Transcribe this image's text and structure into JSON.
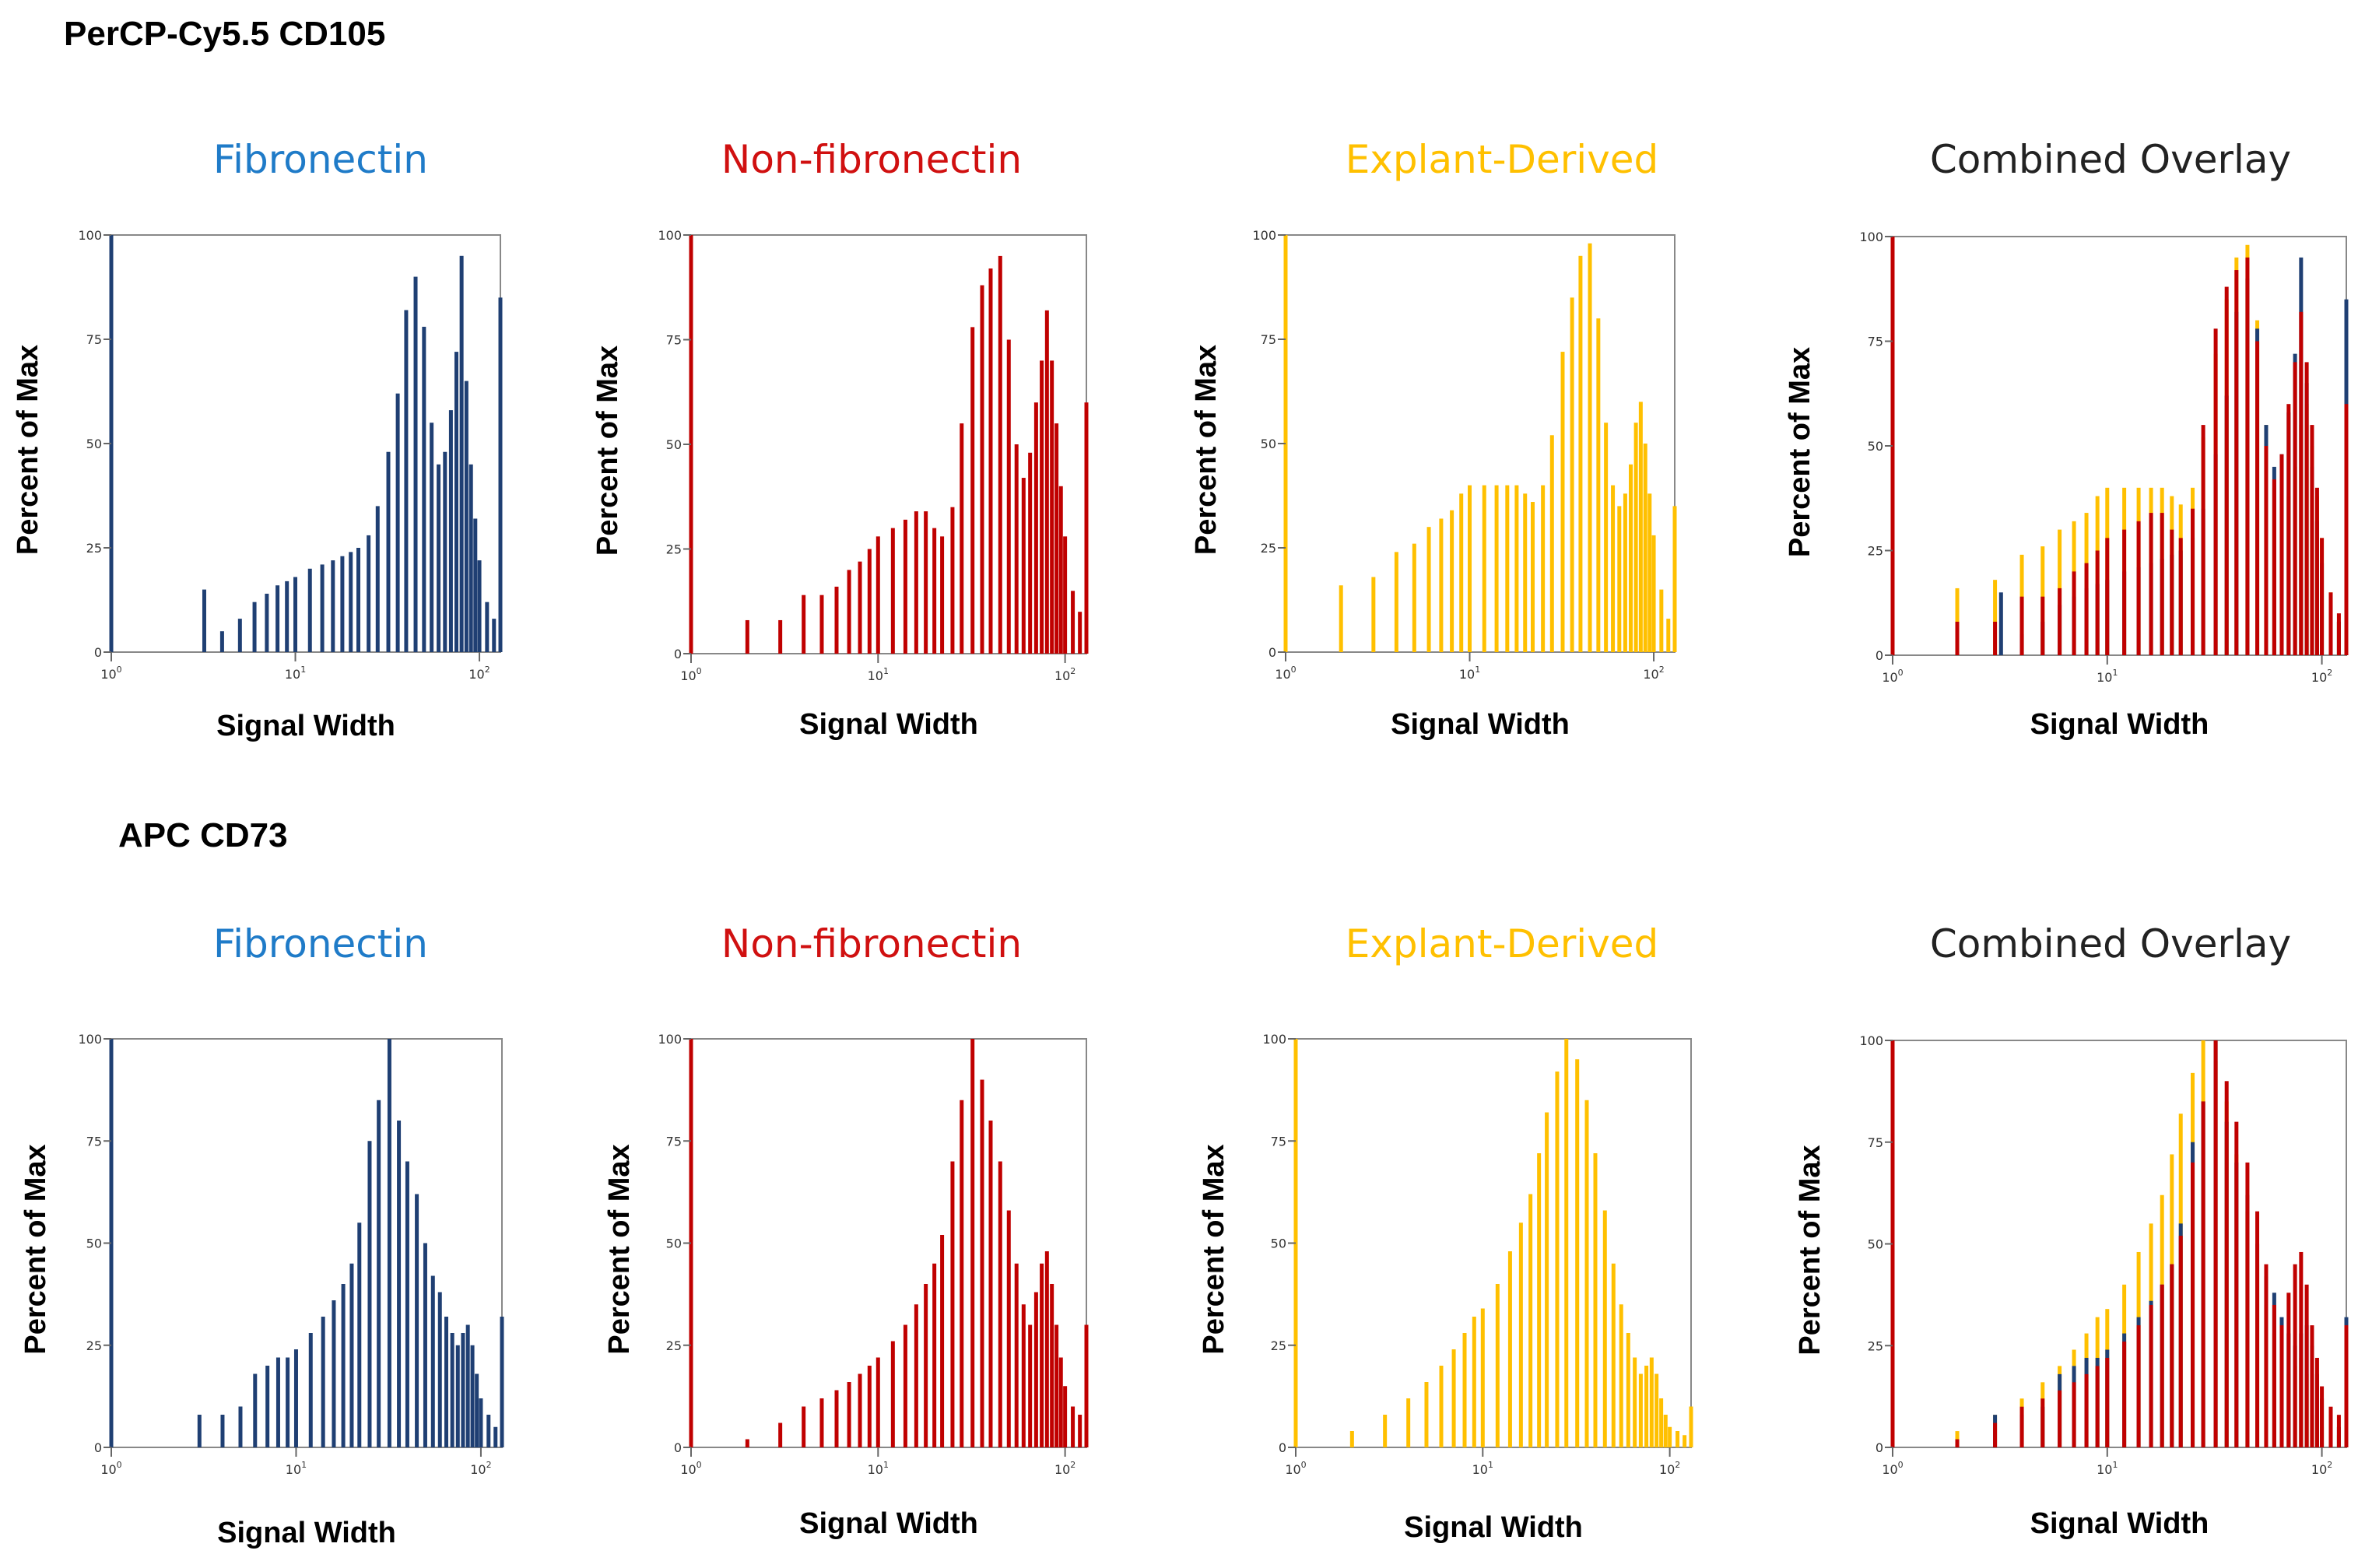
{
  "figure": {
    "sections": [
      {
        "title": "PerCP-Cy5.5 CD105"
      },
      {
        "title": "APC CD73"
      }
    ],
    "colors": {
      "fibronectin": "#1f3f73",
      "non_fibronectin": "#c00000",
      "explant": "#ffc000",
      "fibronectin_title": "#1f7bc8",
      "non_fibronectin_title": "#d01010",
      "explant_title": "#ffc000",
      "overlay_title": "#222222"
    }
  },
  "chart_data": [
    {
      "type": "histogram",
      "section": "PerCP-Cy5.5 CD105",
      "title": "Fibronectin",
      "xlabel": "Signal Width",
      "ylabel": "Percent of Max",
      "x_scale": "log",
      "xlim": [
        1,
        130
      ],
      "ylim": [
        0,
        100
      ],
      "yticks": [
        0,
        25,
        50,
        75,
        100
      ],
      "series": [
        {
          "color": "#1f3f73",
          "x": [
            1,
            2,
            3,
            3.2,
            4,
            5,
            6,
            7,
            8,
            9,
            10,
            12,
            14,
            16,
            18,
            20,
            22,
            25,
            28,
            32,
            36,
            40,
            45,
            50,
            55,
            60,
            65,
            70,
            75,
            80,
            85,
            90,
            95,
            100,
            110,
            120,
            130
          ],
          "y": [
            100,
            0,
            0,
            15,
            5,
            8,
            12,
            14,
            16,
            17,
            18,
            20,
            21,
            22,
            23,
            24,
            25,
            28,
            35,
            48,
            62,
            82,
            90,
            78,
            55,
            45,
            48,
            58,
            72,
            95,
            65,
            45,
            32,
            22,
            12,
            8,
            85
          ]
        }
      ]
    },
    {
      "type": "histogram",
      "section": "PerCP-Cy5.5 CD105",
      "title": "Non-fibronectin",
      "xlabel": "Signal Width",
      "ylabel": "Percent of Max",
      "x_scale": "log",
      "xlim": [
        1,
        130
      ],
      "ylim": [
        0,
        100
      ],
      "yticks": [
        0,
        25,
        50,
        75,
        100
      ],
      "series": [
        {
          "color": "#c00000",
          "x": [
            1,
            2,
            3,
            4,
            5,
            6,
            7,
            8,
            9,
            10,
            12,
            14,
            16,
            18,
            20,
            22,
            25,
            28,
            32,
            36,
            40,
            45,
            50,
            55,
            60,
            65,
            70,
            75,
            80,
            85,
            90,
            95,
            100,
            110,
            120,
            130
          ],
          "y": [
            100,
            8,
            8,
            14,
            14,
            16,
            20,
            22,
            25,
            28,
            30,
            32,
            34,
            34,
            30,
            28,
            35,
            55,
            78,
            88,
            92,
            95,
            75,
            50,
            42,
            48,
            60,
            70,
            82,
            70,
            55,
            40,
            28,
            15,
            10,
            60
          ]
        }
      ]
    },
    {
      "type": "histogram",
      "section": "PerCP-Cy5.5 CD105",
      "title": "Explant-Derived",
      "xlabel": "Signal Width",
      "ylabel": "Percent of Max",
      "x_scale": "log",
      "xlim": [
        1,
        130
      ],
      "ylim": [
        0,
        100
      ],
      "yticks": [
        0,
        25,
        50,
        75,
        100
      ],
      "series": [
        {
          "color": "#ffc000",
          "x": [
            1,
            2,
            3,
            4,
            5,
            6,
            7,
            8,
            9,
            10,
            12,
            14,
            16,
            18,
            20,
            22,
            25,
            28,
            32,
            36,
            40,
            45,
            50,
            55,
            60,
            65,
            70,
            75,
            80,
            85,
            90,
            95,
            100,
            110,
            120,
            130
          ],
          "y": [
            100,
            16,
            18,
            24,
            26,
            30,
            32,
            34,
            38,
            40,
            40,
            40,
            40,
            40,
            38,
            36,
            40,
            52,
            72,
            85,
            95,
            98,
            80,
            55,
            40,
            35,
            38,
            45,
            55,
            60,
            50,
            38,
            28,
            15,
            8,
            35
          ]
        }
      ]
    },
    {
      "type": "histogram",
      "section": "PerCP-Cy5.5 CD105",
      "title": "Combined Overlay",
      "xlabel": "Signal Width",
      "ylabel": "Percent of Max",
      "x_scale": "log",
      "xlim": [
        1,
        130
      ],
      "ylim": [
        0,
        100
      ],
      "yticks": [
        0,
        25,
        50,
        75,
        100
      ],
      "series": [
        {
          "color": "#ffc000",
          "x": [
            1,
            2,
            3,
            4,
            5,
            6,
            7,
            8,
            9,
            10,
            12,
            14,
            16,
            18,
            20,
            22,
            25,
            28,
            32,
            36,
            40,
            45,
            50,
            55,
            60,
            65,
            70,
            75,
            80,
            85,
            90,
            95,
            100,
            110,
            120,
            130
          ],
          "y": [
            100,
            16,
            18,
            24,
            26,
            30,
            32,
            34,
            38,
            40,
            40,
            40,
            40,
            40,
            38,
            36,
            40,
            52,
            72,
            85,
            95,
            98,
            80,
            55,
            40,
            35,
            38,
            45,
            55,
            60,
            50,
            38,
            28,
            15,
            8,
            35
          ]
        },
        {
          "color": "#1f3f73",
          "x": [
            1,
            2,
            3,
            3.2,
            4,
            5,
            6,
            7,
            8,
            9,
            10,
            12,
            14,
            16,
            18,
            20,
            22,
            25,
            28,
            32,
            36,
            40,
            45,
            50,
            55,
            60,
            65,
            70,
            75,
            80,
            85,
            90,
            95,
            100,
            110,
            120,
            130
          ],
          "y": [
            100,
            0,
            0,
            15,
            5,
            8,
            12,
            14,
            16,
            17,
            18,
            20,
            21,
            22,
            23,
            24,
            25,
            28,
            35,
            48,
            62,
            82,
            90,
            78,
            55,
            45,
            48,
            58,
            72,
            95,
            65,
            45,
            32,
            22,
            12,
            8,
            85
          ]
        },
        {
          "color": "#c00000",
          "x": [
            1,
            2,
            3,
            4,
            5,
            6,
            7,
            8,
            9,
            10,
            12,
            14,
            16,
            18,
            20,
            22,
            25,
            28,
            32,
            36,
            40,
            45,
            50,
            55,
            60,
            65,
            70,
            75,
            80,
            85,
            90,
            95,
            100,
            110,
            120,
            130
          ],
          "y": [
            100,
            8,
            8,
            14,
            14,
            16,
            20,
            22,
            25,
            28,
            30,
            32,
            34,
            34,
            30,
            28,
            35,
            55,
            78,
            88,
            92,
            95,
            75,
            50,
            42,
            48,
            60,
            70,
            82,
            70,
            55,
            40,
            28,
            15,
            10,
            60
          ]
        }
      ]
    },
    {
      "type": "histogram",
      "section": "APC CD73",
      "title": "Fibronectin",
      "xlabel": "Signal Width",
      "ylabel": "Percent of Max",
      "x_scale": "log",
      "xlim": [
        1,
        130
      ],
      "ylim": [
        0,
        100
      ],
      "yticks": [
        0,
        25,
        50,
        75,
        100
      ],
      "series": [
        {
          "color": "#1f3f73",
          "x": [
            1,
            2,
            3,
            4,
            5,
            6,
            7,
            8,
            9,
            10,
            12,
            14,
            16,
            18,
            20,
            22,
            25,
            28,
            32,
            36,
            40,
            45,
            50,
            55,
            60,
            65,
            70,
            75,
            80,
            85,
            90,
            95,
            100,
            110,
            120,
            130
          ],
          "y": [
            100,
            0,
            8,
            8,
            10,
            18,
            20,
            22,
            22,
            24,
            28,
            32,
            36,
            40,
            45,
            55,
            75,
            85,
            100,
            80,
            70,
            62,
            50,
            42,
            38,
            32,
            28,
            25,
            28,
            30,
            25,
            18,
            12,
            8,
            5,
            32
          ]
        }
      ]
    },
    {
      "type": "histogram",
      "section": "APC CD73",
      "title": "Non-fibronectin",
      "xlabel": "Signal Width",
      "ylabel": "Percent of Max",
      "x_scale": "log",
      "xlim": [
        1,
        130
      ],
      "ylim": [
        0,
        100
      ],
      "yticks": [
        0,
        25,
        50,
        75,
        100
      ],
      "series": [
        {
          "color": "#c00000",
          "x": [
            1,
            2,
            3,
            4,
            5,
            6,
            7,
            8,
            9,
            10,
            12,
            14,
            16,
            18,
            20,
            22,
            25,
            28,
            32,
            36,
            40,
            45,
            50,
            55,
            60,
            65,
            70,
            75,
            80,
            85,
            90,
            95,
            100,
            110,
            120,
            130
          ],
          "y": [
            100,
            2,
            6,
            10,
            12,
            14,
            16,
            18,
            20,
            22,
            26,
            30,
            35,
            40,
            45,
            52,
            70,
            85,
            100,
            90,
            80,
            70,
            58,
            45,
            35,
            30,
            38,
            45,
            48,
            40,
            30,
            22,
            15,
            10,
            8,
            30
          ]
        }
      ]
    },
    {
      "type": "histogram",
      "section": "APC CD73",
      "title": "Explant-Derived",
      "xlabel": "Signal Width",
      "ylabel": "Percent of Max",
      "x_scale": "log",
      "xlim": [
        1,
        130
      ],
      "ylim": [
        0,
        100
      ],
      "yticks": [
        0,
        25,
        50,
        75,
        100
      ],
      "series": [
        {
          "color": "#ffc000",
          "x": [
            1,
            2,
            3,
            4,
            5,
            6,
            7,
            8,
            9,
            10,
            12,
            14,
            16,
            18,
            20,
            22,
            25,
            28,
            32,
            36,
            40,
            45,
            50,
            55,
            60,
            65,
            70,
            75,
            80,
            85,
            90,
            95,
            100,
            110,
            120,
            130
          ],
          "y": [
            100,
            4,
            8,
            12,
            16,
            20,
            24,
            28,
            32,
            34,
            40,
            48,
            55,
            62,
            72,
            82,
            92,
            100,
            95,
            85,
            72,
            58,
            45,
            35,
            28,
            22,
            18,
            20,
            22,
            18,
            12,
            8,
            5,
            4,
            3,
            10
          ]
        }
      ]
    },
    {
      "type": "histogram",
      "section": "APC CD73",
      "title": "Combined Overlay",
      "xlabel": "Signal Width",
      "ylabel": "Percent of Max",
      "x_scale": "log",
      "xlim": [
        1,
        130
      ],
      "ylim": [
        0,
        100
      ],
      "yticks": [
        0,
        25,
        50,
        75,
        100
      ],
      "series": [
        {
          "color": "#ffc000",
          "x": [
            1,
            2,
            3,
            4,
            5,
            6,
            7,
            8,
            9,
            10,
            12,
            14,
            16,
            18,
            20,
            22,
            25,
            28,
            32,
            36,
            40,
            45,
            50,
            55,
            60,
            65,
            70,
            75,
            80,
            85,
            90,
            95,
            100,
            110,
            120,
            130
          ],
          "y": [
            100,
            4,
            8,
            12,
            16,
            20,
            24,
            28,
            32,
            34,
            40,
            48,
            55,
            62,
            72,
            82,
            92,
            100,
            95,
            85,
            72,
            58,
            45,
            35,
            28,
            22,
            18,
            20,
            22,
            18,
            12,
            8,
            5,
            4,
            3,
            10
          ]
        },
        {
          "color": "#1f3f73",
          "x": [
            1,
            2,
            3,
            4,
            5,
            6,
            7,
            8,
            9,
            10,
            12,
            14,
            16,
            18,
            20,
            22,
            25,
            28,
            32,
            36,
            40,
            45,
            50,
            55,
            60,
            65,
            70,
            75,
            80,
            85,
            90,
            95,
            100,
            110,
            120,
            130
          ],
          "y": [
            100,
            0,
            8,
            8,
            10,
            18,
            20,
            22,
            22,
            24,
            28,
            32,
            36,
            40,
            45,
            55,
            75,
            85,
            100,
            80,
            70,
            62,
            50,
            42,
            38,
            32,
            28,
            25,
            28,
            30,
            25,
            18,
            12,
            8,
            5,
            32
          ]
        },
        {
          "color": "#c00000",
          "x": [
            1,
            2,
            3,
            4,
            5,
            6,
            7,
            8,
            9,
            10,
            12,
            14,
            16,
            18,
            20,
            22,
            25,
            28,
            32,
            36,
            40,
            45,
            50,
            55,
            60,
            65,
            70,
            75,
            80,
            85,
            90,
            95,
            100,
            110,
            120,
            130
          ],
          "y": [
            100,
            2,
            6,
            10,
            12,
            14,
            16,
            18,
            20,
            22,
            26,
            30,
            35,
            40,
            45,
            52,
            70,
            85,
            100,
            90,
            80,
            70,
            58,
            45,
            35,
            30,
            38,
            45,
            48,
            40,
            30,
            22,
            15,
            10,
            8,
            30
          ]
        }
      ]
    }
  ]
}
